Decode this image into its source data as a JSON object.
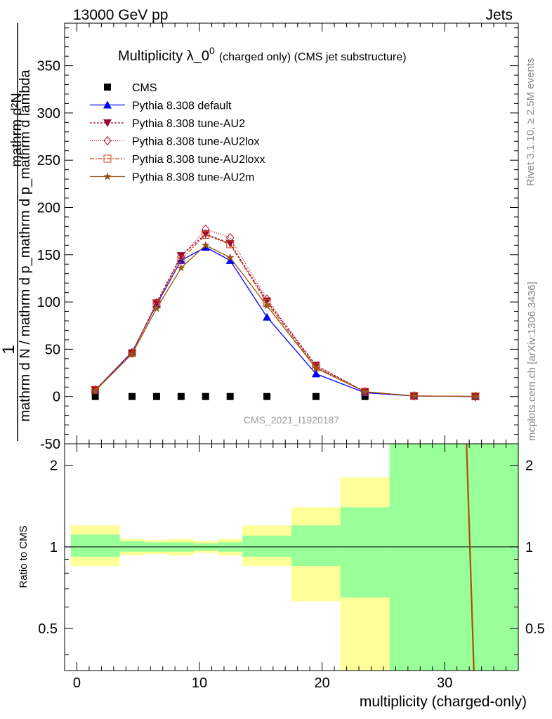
{
  "header": {
    "left": "13000 GeV pp",
    "right": "Jets"
  },
  "side_text": {
    "rivet": "Rivet 3.1.10, ≥ 2.5M events",
    "mcplots": "mcplots.cern.ch [arXiv:1306.3436]"
  },
  "chart_data": [
    {
      "type": "line",
      "title": "Multiplicity λ_0",
      "title_sup": "0",
      "subtitle": "(charged only) (CMS jet substructure)",
      "watermark": "CMS_2021_I1920187",
      "ylabel_top": "1",
      "ylabel_numer": "mathrm d²N",
      "ylabel_denom": "mathrm d N / mathrm d p_mathrm d p_mathrm d lambda",
      "ylim": [
        -50,
        395
      ],
      "xlim": [
        -1,
        36
      ],
      "yticks": [
        -50,
        0,
        50,
        100,
        150,
        200,
        250,
        300,
        350
      ],
      "grid": false,
      "legend_position": "top-left",
      "x": [
        1.5,
        4.5,
        6.5,
        8.5,
        10.5,
        12.5,
        15.5,
        19.5,
        23.5,
        27.5,
        32.5
      ],
      "series": [
        {
          "name": "CMS",
          "color": "#000000",
          "marker": "square",
          "dash": "",
          "values": [
            0,
            0,
            0,
            0,
            0,
            0,
            0,
            0,
            0,
            0,
            0
          ]
        },
        {
          "name": "Pythia 8.308 default",
          "color": "#0000ff",
          "marker": "triangle-up",
          "dash": "",
          "values": [
            7,
            47,
            97,
            144,
            158,
            144,
            84,
            24,
            4,
            0.5,
            0.1
          ]
        },
        {
          "name": "Pythia 8.308 tune-AU2",
          "color": "#990033",
          "marker": "triangle-down",
          "dash": "3,2",
          "values": [
            7,
            46,
            99,
            149,
            172,
            162,
            101,
            33,
            5,
            0.6,
            0.1
          ]
        },
        {
          "name": "Pythia 8.308 tune-AU2lox",
          "color": "#aa1133",
          "marker": "diamond",
          "dash": "1,2",
          "values": [
            7,
            46,
            99,
            148,
            177,
            168,
            103,
            32,
            5,
            0.6,
            0.1
          ]
        },
        {
          "name": "Pythia 8.308 tune-AU2loxx",
          "color": "#cc4411",
          "marker": "square-open",
          "dash": "6,2,2,2",
          "values": [
            7,
            46,
            98,
            145,
            171,
            161,
            99,
            31,
            5,
            0.6,
            0.1
          ]
        },
        {
          "name": "Pythia 8.308 tune-AU2m",
          "color": "#995511",
          "marker": "star",
          "dash": "",
          "values": [
            6,
            45,
            93,
            136,
            160,
            147,
            96,
            30,
            5,
            0.6,
            0.1
          ]
        }
      ]
    },
    {
      "type": "ratio",
      "ylabel": "Ratio to CMS",
      "xlabel": "multiplicity (charged-only)",
      "xlim": [
        -1,
        36
      ],
      "ylim": [
        0.35,
        2.4
      ],
      "log_y": true,
      "yticks": [
        0.5,
        1,
        2
      ],
      "xticks": [
        0,
        10,
        20,
        30
      ],
      "bins": [
        {
          "lo": -0.5,
          "hi": 3.5,
          "band_inner": [
            0.92,
            1.11
          ],
          "band_outer": [
            0.85,
            1.2
          ]
        },
        {
          "lo": 3.5,
          "hi": 5.5,
          "band_inner": [
            0.96,
            1.05
          ],
          "band_outer": [
            0.93,
            1.07
          ]
        },
        {
          "lo": 5.5,
          "hi": 7.5,
          "band_inner": [
            0.96,
            1.04
          ],
          "band_outer": [
            0.94,
            1.06
          ]
        },
        {
          "lo": 7.5,
          "hi": 9.5,
          "band_inner": [
            0.96,
            1.04
          ],
          "band_outer": [
            0.93,
            1.07
          ]
        },
        {
          "lo": 9.5,
          "hi": 11.5,
          "band_inner": [
            0.97,
            1.03
          ],
          "band_outer": [
            0.95,
            1.05
          ]
        },
        {
          "lo": 11.5,
          "hi": 13.5,
          "band_inner": [
            0.96,
            1.04
          ],
          "band_outer": [
            0.93,
            1.07
          ]
        },
        {
          "lo": 13.5,
          "hi": 17.5,
          "band_inner": [
            0.92,
            1.1
          ],
          "band_outer": [
            0.85,
            1.2
          ]
        },
        {
          "lo": 17.5,
          "hi": 21.5,
          "band_inner": [
            0.85,
            1.2
          ],
          "band_outer": [
            0.63,
            1.4
          ]
        },
        {
          "lo": 21.5,
          "hi": 25.5,
          "band_inner": [
            0.65,
            1.4
          ],
          "band_outer": [
            0.35,
            1.8
          ]
        },
        {
          "lo": 25.5,
          "hi": 36,
          "band_inner": [
            0.35,
            2.4
          ],
          "band_outer": [
            0.35,
            2.4
          ]
        }
      ],
      "ratio_line": {
        "x": [
          31.8,
          32.4
        ],
        "y": [
          2.4,
          0.35
        ]
      }
    }
  ]
}
